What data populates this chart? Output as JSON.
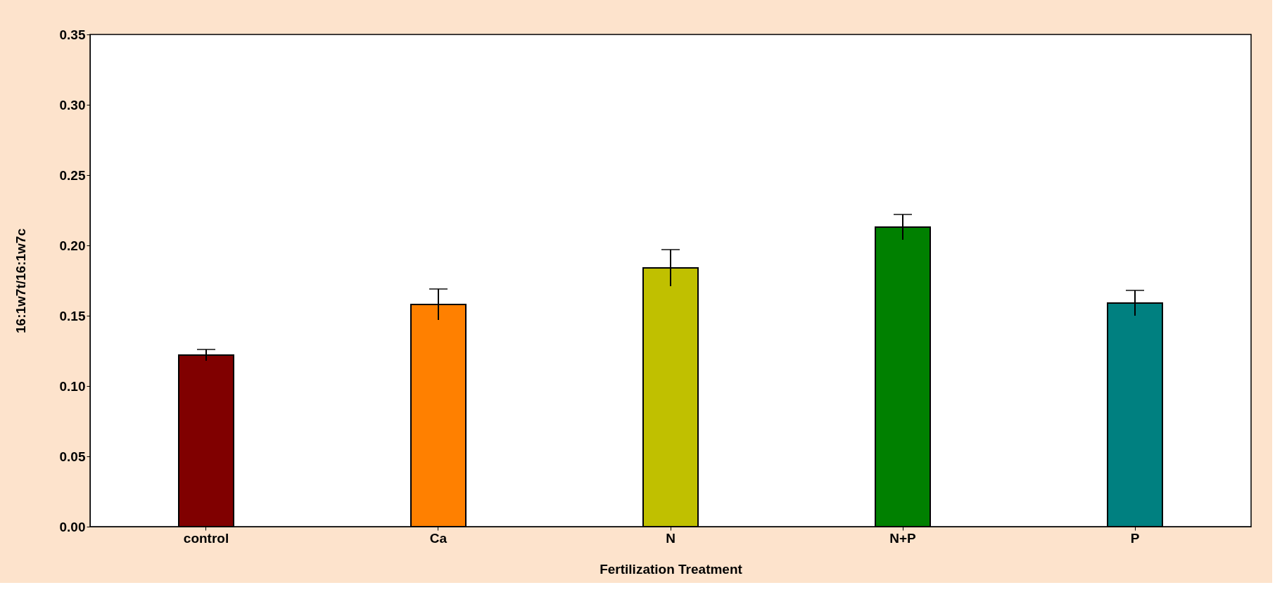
{
  "chart_data": {
    "type": "bar",
    "xlabel": "Fertilization Treatment",
    "ylabel": "16:1w7t/16:1w7c",
    "categories": [
      "control",
      "Ca",
      "N",
      "N+P",
      "P"
    ],
    "values": [
      0.122,
      0.158,
      0.184,
      0.213,
      0.159
    ],
    "errors": [
      0.004,
      0.011,
      0.013,
      0.009,
      0.009
    ],
    "colors": [
      "#800000",
      "#ff8000",
      "#c0c000",
      "#008000",
      "#008080"
    ],
    "ylim": [
      0,
      0.35
    ],
    "yticks": [
      {
        "value": 0,
        "label": "0.00"
      },
      {
        "value": 0.05,
        "label": "0.05"
      },
      {
        "value": 0.1,
        "label": "0.10"
      },
      {
        "value": 0.15,
        "label": "0.15"
      },
      {
        "value": 0.2,
        "label": "0.20"
      },
      {
        "value": 0.25,
        "label": "0.25"
      },
      {
        "value": 0.3,
        "label": "0.30"
      },
      {
        "value": 0.35,
        "label": "0.35"
      }
    ],
    "grid": false
  }
}
